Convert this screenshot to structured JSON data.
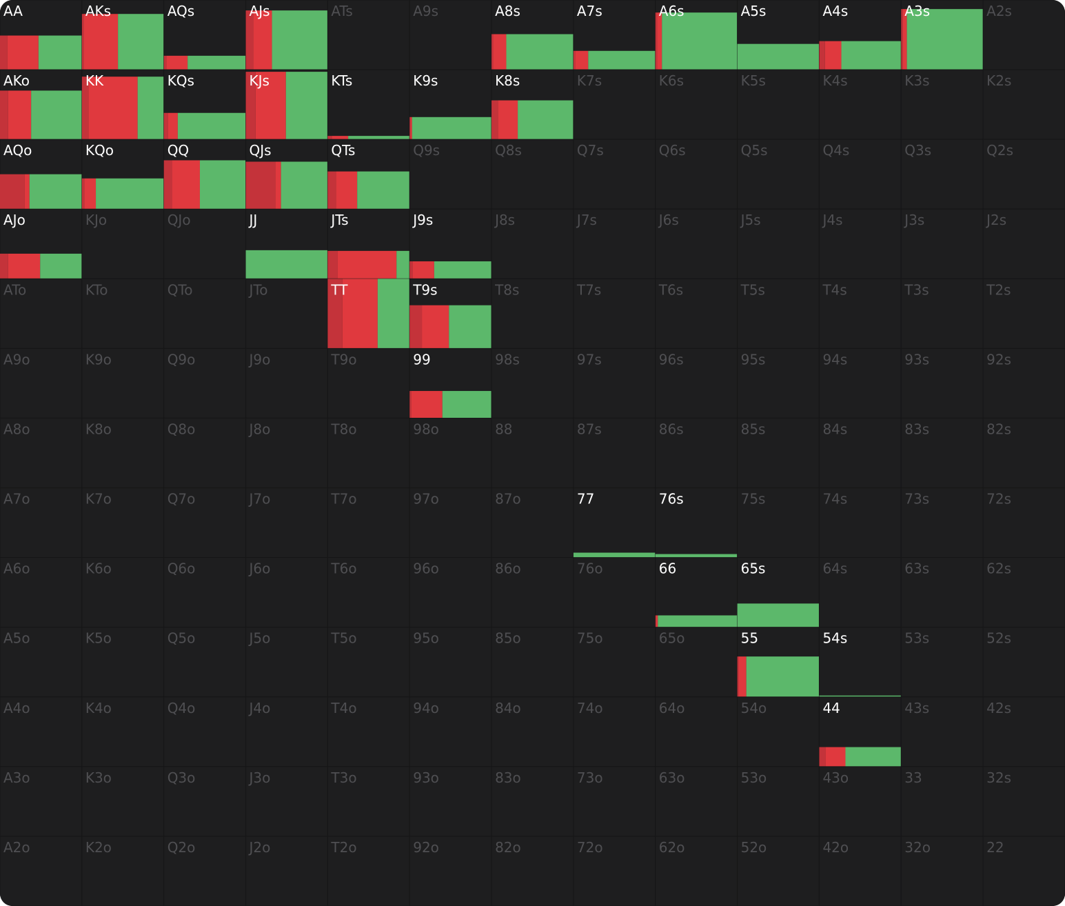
{
  "grid": {
    "colors": [
      "#c4333a",
      "#e0393e",
      "#5cb86b"
    ],
    "rows": [
      {
        "cells": [
          {
            "label": "AA",
            "active": true,
            "freq": 0.49,
            "bars": [
              0.09,
              0.38,
              0.53
            ]
          },
          {
            "label": "AKs",
            "active": true,
            "freq": 0.8,
            "bars": [
              0.02,
              0.42,
              0.56
            ]
          },
          {
            "label": "AQs",
            "active": true,
            "freq": 0.2,
            "bars": [
              0.03,
              0.26,
              0.71
            ]
          },
          {
            "label": "AJs",
            "active": true,
            "freq": 0.85,
            "bars": [
              0.09,
              0.23,
              0.68
            ]
          },
          {
            "label": "ATs",
            "active": false
          },
          {
            "label": "A9s",
            "active": false
          },
          {
            "label": "A8s",
            "active": true,
            "freq": 0.51,
            "bars": [
              0.02,
              0.16,
              0.82
            ]
          },
          {
            "label": "A7s",
            "active": true,
            "freq": 0.27,
            "bars": [
              0.02,
              0.16,
              0.82
            ]
          },
          {
            "label": "A6s",
            "active": true,
            "freq": 0.82,
            "bars": [
              0.02,
              0.06,
              0.92
            ]
          },
          {
            "label": "A5s",
            "active": true,
            "freq": 0.37,
            "bars": [
              0,
              0,
              1
            ]
          },
          {
            "label": "A4s",
            "active": true,
            "freq": 0.41,
            "bars": [
              0.07,
              0.2,
              0.73
            ]
          },
          {
            "label": "A3s",
            "active": true,
            "freq": 0.87,
            "bars": [
              0.02,
              0.05,
              0.93
            ]
          },
          {
            "label": "A2s",
            "active": false
          }
        ]
      },
      {
        "cells": [
          {
            "label": "AKo",
            "active": true,
            "freq": 0.7,
            "bars": [
              0.1,
              0.28,
              0.62
            ]
          },
          {
            "label": "KK",
            "active": true,
            "freq": 0.9,
            "bars": [
              0.08,
              0.6,
              0.32
            ]
          },
          {
            "label": "KQs",
            "active": true,
            "freq": 0.38,
            "bars": [
              0.05,
              0.12,
              0.83
            ]
          },
          {
            "label": "KJs",
            "active": true,
            "freq": 0.97,
            "bars": [
              0.12,
              0.37,
              0.51
            ]
          },
          {
            "label": "KTs",
            "active": true,
            "freq": 0.05,
            "bars": [
              0.05,
              0.2,
              0.75
            ]
          },
          {
            "label": "K9s",
            "active": true,
            "freq": 0.32,
            "bars": [
              0.01,
              0.02,
              0.97
            ]
          },
          {
            "label": "K8s",
            "active": true,
            "freq": 0.56,
            "bars": [
              0.08,
              0.24,
              0.68
            ]
          },
          {
            "label": "K7s",
            "active": false
          },
          {
            "label": "K6s",
            "active": false
          },
          {
            "label": "K5s",
            "active": false
          },
          {
            "label": "K4s",
            "active": false
          },
          {
            "label": "K3s",
            "active": false
          },
          {
            "label": "K2s",
            "active": false
          }
        ]
      },
      {
        "cells": [
          {
            "label": "AQo",
            "active": true,
            "freq": 0.5,
            "bars": [
              0.3,
              0.06,
              0.64
            ]
          },
          {
            "label": "KQo",
            "active": true,
            "freq": 0.44,
            "bars": [
              0.03,
              0.14,
              0.83
            ]
          },
          {
            "label": "QQ",
            "active": true,
            "freq": 0.7,
            "bars": [
              0.1,
              0.34,
              0.56
            ]
          },
          {
            "label": "QJs",
            "active": true,
            "freq": 0.68,
            "bars": [
              0.36,
              0.07,
              0.57
            ]
          },
          {
            "label": "QTs",
            "active": true,
            "freq": 0.54,
            "bars": [
              0.1,
              0.26,
              0.64
            ]
          },
          {
            "label": "Q9s",
            "active": false
          },
          {
            "label": "Q8s",
            "active": false
          },
          {
            "label": "Q7s",
            "active": false
          },
          {
            "label": "Q6s",
            "active": false
          },
          {
            "label": "Q5s",
            "active": false
          },
          {
            "label": "Q4s",
            "active": false
          },
          {
            "label": "Q3s",
            "active": false
          },
          {
            "label": "Q2s",
            "active": false
          }
        ]
      },
      {
        "cells": [
          {
            "label": "AJo",
            "active": true,
            "freq": 0.36,
            "bars": [
              0.1,
              0.39,
              0.51
            ]
          },
          {
            "label": "KJo",
            "active": false
          },
          {
            "label": "QJo",
            "active": false
          },
          {
            "label": "JJ",
            "active": true,
            "freq": 0.41,
            "bars": [
              0,
              0,
              1
            ]
          },
          {
            "label": "JTs",
            "active": true,
            "freq": 0.4,
            "bars": [
              0.12,
              0.72,
              0.16
            ]
          },
          {
            "label": "J9s",
            "active": true,
            "freq": 0.25,
            "bars": [
              0.04,
              0.26,
              0.7
            ]
          },
          {
            "label": "J8s",
            "active": false
          },
          {
            "label": "J7s",
            "active": false
          },
          {
            "label": "J6s",
            "active": false
          },
          {
            "label": "J5s",
            "active": false
          },
          {
            "label": "J4s",
            "active": false
          },
          {
            "label": "J3s",
            "active": false
          },
          {
            "label": "J2s",
            "active": false
          }
        ]
      },
      {
        "cells": [
          {
            "label": "ATo",
            "active": false
          },
          {
            "label": "KTo",
            "active": false
          },
          {
            "label": "QTo",
            "active": false
          },
          {
            "label": "JTo",
            "active": false
          },
          {
            "label": "TT",
            "active": true,
            "freq": 1,
            "bars": [
              0.18,
              0.43,
              0.39
            ]
          },
          {
            "label": "T9s",
            "active": true,
            "freq": 0.62,
            "bars": [
              0.15,
              0.33,
              0.52
            ]
          },
          {
            "label": "T8s",
            "active": false
          },
          {
            "label": "T7s",
            "active": false
          },
          {
            "label": "T6s",
            "active": false
          },
          {
            "label": "T5s",
            "active": false
          },
          {
            "label": "T4s",
            "active": false
          },
          {
            "label": "T3s",
            "active": false
          },
          {
            "label": "T2s",
            "active": false
          }
        ]
      },
      {
        "cells": [
          {
            "label": "A9o",
            "active": false
          },
          {
            "label": "K9o",
            "active": false
          },
          {
            "label": "Q9o",
            "active": false
          },
          {
            "label": "J9o",
            "active": false
          },
          {
            "label": "T9o",
            "active": false
          },
          {
            "label": "99",
            "active": true,
            "freq": 0.39,
            "bars": [
              0.02,
              0.38,
              0.6
            ]
          },
          {
            "label": "98s",
            "active": false
          },
          {
            "label": "97s",
            "active": false
          },
          {
            "label": "96s",
            "active": false
          },
          {
            "label": "95s",
            "active": false
          },
          {
            "label": "94s",
            "active": false
          },
          {
            "label": "93s",
            "active": false
          },
          {
            "label": "92s",
            "active": false
          }
        ]
      },
      {
        "cells": [
          {
            "label": "A8o",
            "active": false
          },
          {
            "label": "K8o",
            "active": false
          },
          {
            "label": "Q8o",
            "active": false
          },
          {
            "label": "J8o",
            "active": false
          },
          {
            "label": "T8o",
            "active": false
          },
          {
            "label": "98o",
            "active": false
          },
          {
            "label": "88",
            "active": false
          },
          {
            "label": "87s",
            "active": false
          },
          {
            "label": "86s",
            "active": false
          },
          {
            "label": "85s",
            "active": false
          },
          {
            "label": "84s",
            "active": false
          },
          {
            "label": "83s",
            "active": false
          },
          {
            "label": "82s",
            "active": false
          }
        ]
      },
      {
        "cells": [
          {
            "label": "A7o",
            "active": false
          },
          {
            "label": "K7o",
            "active": false
          },
          {
            "label": "Q7o",
            "active": false
          },
          {
            "label": "J7o",
            "active": false
          },
          {
            "label": "T7o",
            "active": false
          },
          {
            "label": "97o",
            "active": false
          },
          {
            "label": "87o",
            "active": false
          },
          {
            "label": "77",
            "active": true,
            "freq": 0.07,
            "bars": [
              0,
              0,
              1
            ]
          },
          {
            "label": "76s",
            "active": true,
            "freq": 0.05,
            "bars": [
              0,
              0,
              1
            ]
          },
          {
            "label": "75s",
            "active": false
          },
          {
            "label": "74s",
            "active": false
          },
          {
            "label": "73s",
            "active": false
          },
          {
            "label": "72s",
            "active": false
          }
        ]
      },
      {
        "cells": [
          {
            "label": "A6o",
            "active": false
          },
          {
            "label": "K6o",
            "active": false
          },
          {
            "label": "Q6o",
            "active": false
          },
          {
            "label": "J6o",
            "active": false
          },
          {
            "label": "T6o",
            "active": false
          },
          {
            "label": "96o",
            "active": false
          },
          {
            "label": "86o",
            "active": false
          },
          {
            "label": "76o",
            "active": false
          },
          {
            "label": "66",
            "active": true,
            "freq": 0.17,
            "bars": [
              0.01,
              0.02,
              0.97
            ]
          },
          {
            "label": "65s",
            "active": true,
            "freq": 0.34,
            "bars": [
              0,
              0,
              1
            ]
          },
          {
            "label": "64s",
            "active": false
          },
          {
            "label": "63s",
            "active": false
          },
          {
            "label": "62s",
            "active": false
          }
        ]
      },
      {
        "cells": [
          {
            "label": "A5o",
            "active": false
          },
          {
            "label": "K5o",
            "active": false
          },
          {
            "label": "Q5o",
            "active": false
          },
          {
            "label": "J5o",
            "active": false
          },
          {
            "label": "T5o",
            "active": false
          },
          {
            "label": "95o",
            "active": false
          },
          {
            "label": "85o",
            "active": false
          },
          {
            "label": "75o",
            "active": false
          },
          {
            "label": "65o",
            "active": false
          },
          {
            "label": "55",
            "active": true,
            "freq": 0.58,
            "bars": [
              0.02,
              0.09,
              0.89
            ]
          },
          {
            "label": "54s",
            "active": true,
            "freq": 0.02,
            "bars": [
              0,
              0,
              1
            ]
          },
          {
            "label": "53s",
            "active": false
          },
          {
            "label": "52s",
            "active": false
          }
        ]
      },
      {
        "cells": [
          {
            "label": "A4o",
            "active": false
          },
          {
            "label": "K4o",
            "active": false
          },
          {
            "label": "Q4o",
            "active": false
          },
          {
            "label": "J4o",
            "active": false
          },
          {
            "label": "T4o",
            "active": false
          },
          {
            "label": "94o",
            "active": false
          },
          {
            "label": "84o",
            "active": false
          },
          {
            "label": "74o",
            "active": false
          },
          {
            "label": "64o",
            "active": false
          },
          {
            "label": "54o",
            "active": false
          },
          {
            "label": "44",
            "active": true,
            "freq": 0.28,
            "bars": [
              0.08,
              0.24,
              0.68
            ]
          },
          {
            "label": "43s",
            "active": false
          },
          {
            "label": "42s",
            "active": false
          }
        ]
      },
      {
        "cells": [
          {
            "label": "A3o",
            "active": false
          },
          {
            "label": "K3o",
            "active": false
          },
          {
            "label": "Q3o",
            "active": false
          },
          {
            "label": "J3o",
            "active": false
          },
          {
            "label": "T3o",
            "active": false
          },
          {
            "label": "93o",
            "active": false
          },
          {
            "label": "83o",
            "active": false
          },
          {
            "label": "73o",
            "active": false
          },
          {
            "label": "63o",
            "active": false
          },
          {
            "label": "53o",
            "active": false
          },
          {
            "label": "43o",
            "active": false
          },
          {
            "label": "33",
            "active": false
          },
          {
            "label": "32s",
            "active": false
          }
        ]
      },
      {
        "cells": [
          {
            "label": "A2o",
            "active": false
          },
          {
            "label": "K2o",
            "active": false
          },
          {
            "label": "Q2o",
            "active": false
          },
          {
            "label": "J2o",
            "active": false
          },
          {
            "label": "T2o",
            "active": false
          },
          {
            "label": "92o",
            "active": false
          },
          {
            "label": "82o",
            "active": false
          },
          {
            "label": "72o",
            "active": false
          },
          {
            "label": "62o",
            "active": false
          },
          {
            "label": "52o",
            "active": false
          },
          {
            "label": "42o",
            "active": false
          },
          {
            "label": "32o",
            "active": false
          },
          {
            "label": "22",
            "active": false
          }
        ]
      }
    ]
  }
}
